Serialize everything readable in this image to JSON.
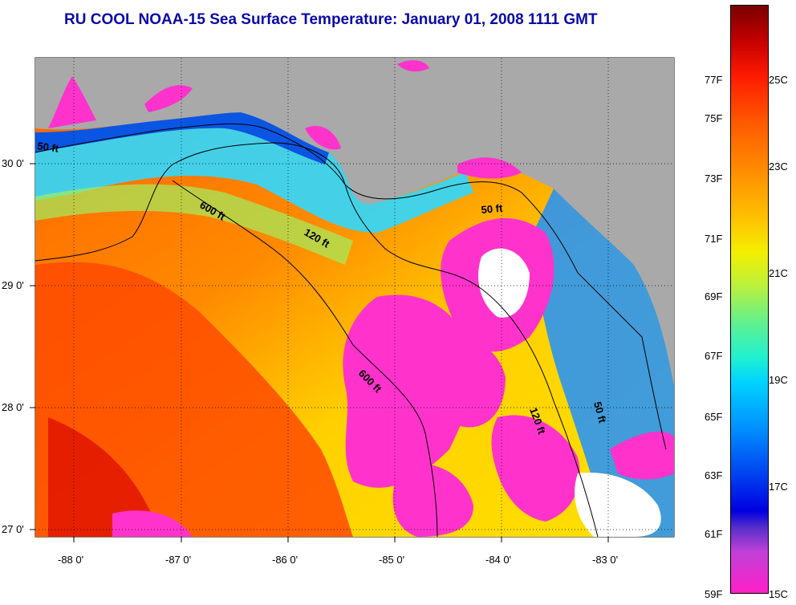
{
  "title": "RU COOL  NOAA-15  Sea Surface Temperature:  January 01, 2008 1111 GMT",
  "axes": {
    "lon_ticks": [
      "-88 0'",
      "-87 0'",
      "-86 0'",
      "-85 0'",
      "-84 0'",
      "-83 0'"
    ],
    "lat_ticks": [
      "30 0'",
      "29 0'",
      "28 0'",
      "27 0'"
    ]
  },
  "contours": {
    "labels": [
      "50 ft",
      "600 ft",
      "120 ft",
      "50 ft",
      "600 ft",
      "120 ft",
      "50 ft"
    ]
  },
  "colorbar": {
    "fahrenheit": [
      "77F",
      "75F",
      "73F",
      "71F",
      "69F",
      "67F",
      "65F",
      "63F",
      "61F",
      "59F"
    ],
    "celsius": [
      "25C",
      "23C",
      "21C",
      "19C",
      "17C",
      "15C"
    ]
  },
  "colors": {
    "land": "#a9a9a9",
    "title": "#0a0aa8",
    "cloud": "#ff33cc"
  }
}
